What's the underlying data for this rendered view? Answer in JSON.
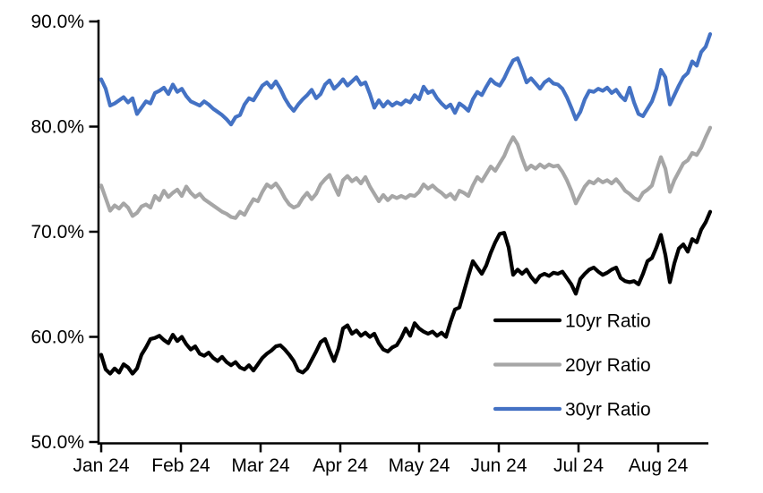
{
  "background_color": "#FFFFFF",
  "chart_data": {
    "type": "line",
    "title": "",
    "xlabel": "",
    "ylabel": "",
    "grid": false,
    "y_axis": {
      "min": 50,
      "max": 90,
      "format": "percent",
      "tick_values": [
        90,
        80,
        70,
        60,
        50
      ],
      "tick_labels": [
        "90.0%",
        "80.0%",
        "70.0%",
        "60.0%",
        "50.0%"
      ]
    },
    "x_axis": {
      "tick_labels": [
        "Jan 24",
        "Feb 24",
        "Mar 24",
        "Apr 24",
        "May 24",
        "Jun 24",
        "Jul 24",
        "Aug 24"
      ],
      "start_label": "Jan 24",
      "end_label": "Aug 24"
    },
    "legend": {
      "position": "inside-right",
      "entries": [
        {
          "label": "10yr Ratio",
          "color": "#000000"
        },
        {
          "label": "20yr Ratio",
          "color": "#A6A6A6"
        },
        {
          "label": "30yr Ratio",
          "color": "#4472C4"
        }
      ]
    },
    "series": [
      {
        "name": "10yr Ratio",
        "color": "#000000",
        "values": [
          58.3,
          56.9,
          56.5,
          57.0,
          56.6,
          57.4,
          57.1,
          56.5,
          57.0,
          58.3,
          59.0,
          59.8,
          59.9,
          60.1,
          59.7,
          59.4,
          60.2,
          59.6,
          60.0,
          59.3,
          58.8,
          59.1,
          58.4,
          58.2,
          58.5,
          58.0,
          57.7,
          58.1,
          57.6,
          57.3,
          57.6,
          57.1,
          56.9,
          57.3,
          56.8,
          57.4,
          58.0,
          58.4,
          58.7,
          59.1,
          59.2,
          58.8,
          58.3,
          57.7,
          56.8,
          56.6,
          57.0,
          57.8,
          58.6,
          59.5,
          59.8,
          58.7,
          57.7,
          58.9,
          60.8,
          61.1,
          60.3,
          60.6,
          60.1,
          60.4,
          60.0,
          60.3,
          59.4,
          58.8,
          58.6,
          59.0,
          59.2,
          59.9,
          60.8,
          60.1,
          61.3,
          60.8,
          60.5,
          60.3,
          60.5,
          60.1,
          60.4,
          60.0,
          61.4,
          62.6,
          62.8,
          64.3,
          65.8,
          67.2,
          66.6,
          66.0,
          66.8,
          68.0,
          69.0,
          69.8,
          69.9,
          68.5,
          65.9,
          66.4,
          66.0,
          66.4,
          65.7,
          65.2,
          65.8,
          66.0,
          65.8,
          66.1,
          66.0,
          66.2,
          65.6,
          65.0,
          64.1,
          65.5,
          66.0,
          66.4,
          66.6,
          66.2,
          65.9,
          66.1,
          66.4,
          66.6,
          65.6,
          65.3,
          65.2,
          65.3,
          65.0,
          66.0,
          67.2,
          67.5,
          68.5,
          69.7,
          67.8,
          65.2,
          67.0,
          68.4,
          68.8,
          68.1,
          69.3,
          69.0,
          70.2,
          70.9,
          71.9
        ]
      },
      {
        "name": "20yr Ratio",
        "color": "#A6A6A6",
        "values": [
          74.4,
          73.2,
          72.0,
          72.5,
          72.2,
          72.7,
          72.3,
          71.5,
          71.8,
          72.4,
          72.6,
          72.3,
          73.4,
          73.0,
          73.9,
          73.3,
          73.7,
          74.0,
          73.4,
          74.3,
          73.7,
          73.3,
          73.6,
          73.1,
          72.8,
          72.5,
          72.2,
          71.9,
          71.7,
          71.4,
          71.3,
          71.9,
          71.6,
          72.4,
          73.1,
          72.9,
          73.8,
          74.5,
          74.2,
          74.6,
          74.0,
          73.2,
          72.6,
          72.3,
          72.5,
          73.2,
          73.7,
          73.1,
          73.6,
          74.5,
          75.0,
          75.4,
          74.4,
          73.5,
          74.9,
          75.3,
          74.8,
          75.1,
          74.6,
          75.2,
          74.3,
          73.6,
          72.9,
          73.5,
          73.0,
          73.4,
          73.2,
          73.4,
          73.2,
          73.5,
          73.4,
          73.8,
          74.5,
          74.1,
          74.4,
          74.0,
          73.7,
          73.3,
          73.6,
          73.1,
          73.9,
          73.7,
          73.4,
          74.4,
          75.2,
          74.8,
          75.5,
          76.2,
          75.8,
          76.5,
          77.2,
          78.2,
          79.0,
          78.3,
          77.0,
          75.9,
          76.3,
          76.0,
          76.4,
          76.1,
          76.4,
          76.2,
          76.3,
          75.7,
          74.9,
          73.9,
          72.7,
          73.5,
          74.3,
          74.8,
          74.6,
          75.0,
          74.7,
          74.9,
          74.6,
          75.0,
          74.5,
          73.9,
          73.6,
          73.2,
          73.0,
          73.7,
          74.0,
          74.4,
          75.8,
          77.1,
          76.0,
          73.8,
          74.9,
          75.7,
          76.5,
          76.8,
          77.5,
          77.3,
          78.0,
          79.0,
          79.9
        ]
      },
      {
        "name": "30yr Ratio",
        "color": "#4472C4",
        "values": [
          84.5,
          83.6,
          82.0,
          82.2,
          82.5,
          82.8,
          82.3,
          82.7,
          81.2,
          81.8,
          82.4,
          82.2,
          83.2,
          83.4,
          83.7,
          83.1,
          84.0,
          83.3,
          83.6,
          82.9,
          82.4,
          82.2,
          82.0,
          82.4,
          82.1,
          81.7,
          81.4,
          81.1,
          80.7,
          80.2,
          80.9,
          81.1,
          82.1,
          82.7,
          82.5,
          83.2,
          83.9,
          84.2,
          83.7,
          84.3,
          83.6,
          82.7,
          82.0,
          81.5,
          82.1,
          82.6,
          83.0,
          83.5,
          82.7,
          83.1,
          84.0,
          84.4,
          83.6,
          84.0,
          84.5,
          83.9,
          84.3,
          84.7,
          84.0,
          84.2,
          83.1,
          81.8,
          82.5,
          81.9,
          82.4,
          82.0,
          82.3,
          82.1,
          82.5,
          82.3,
          83.0,
          82.6,
          83.8,
          83.2,
          83.4,
          82.7,
          82.2,
          81.8,
          82.1,
          81.3,
          82.2,
          81.9,
          81.5,
          82.6,
          83.3,
          83.0,
          83.8,
          84.5,
          84.1,
          83.9,
          84.6,
          85.5,
          86.3,
          86.5,
          85.4,
          84.2,
          84.6,
          84.1,
          83.6,
          84.2,
          84.5,
          84.1,
          84.0,
          83.6,
          82.8,
          81.8,
          80.7,
          81.4,
          82.6,
          83.4,
          83.3,
          83.6,
          83.4,
          83.7,
          83.2,
          83.5,
          82.9,
          82.5,
          83.7,
          82.3,
          81.2,
          81.0,
          81.7,
          82.4,
          83.6,
          85.4,
          84.7,
          82.1,
          83.0,
          83.9,
          84.7,
          85.1,
          86.2,
          85.8,
          87.1,
          87.6,
          88.8
        ]
      }
    ]
  }
}
